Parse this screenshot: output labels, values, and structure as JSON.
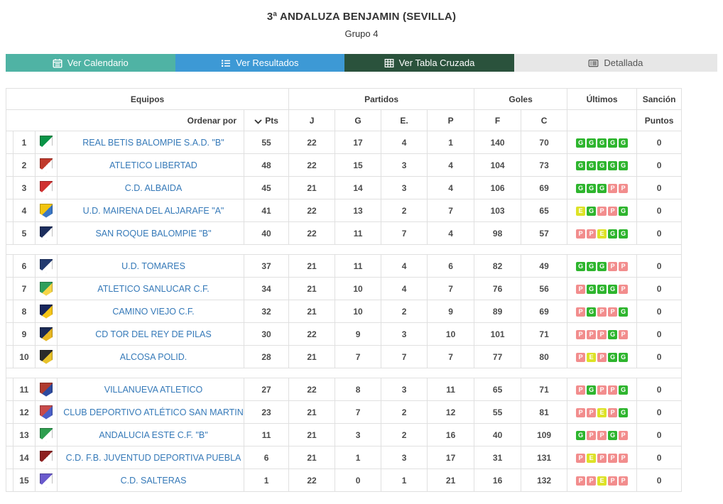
{
  "page": {
    "title": "3ª ANDALUZA BENJAMIN (SEVILLA)",
    "subtitle": "Grupo 4"
  },
  "tabs": [
    {
      "label": "Ver Calendario",
      "icon": "calendar-icon",
      "bg": "#4fb3a4",
      "fg": "#ffffff"
    },
    {
      "label": "Ver Resultados",
      "icon": "list-icon",
      "bg": "#3d99d5",
      "fg": "#ffffff"
    },
    {
      "label": "Ver Tabla Cruzada",
      "icon": "table-icon",
      "bg": "#2a523c",
      "fg": "#ffffff"
    },
    {
      "label": "Detallada",
      "icon": "list-alt-icon",
      "bg": "#e7e7e7",
      "fg": "#555555"
    }
  ],
  "table": {
    "group_headers": {
      "equipos": "Equipos",
      "partidos": "Partidos",
      "goles": "Goles",
      "ultimos": "Últimos",
      "sancion": "Sanción"
    },
    "sub_headers": {
      "ordenar": "Ordenar por",
      "pts": "Pts",
      "j": "J",
      "g": "G",
      "e": "E.",
      "p": "P",
      "f": "F",
      "c": "C",
      "puntos": "Puntos"
    },
    "legend_colors": {
      "G": "#2eb52e",
      "E": "#dde227",
      "P": "#f28d8d"
    },
    "rows": [
      {
        "pos": 1,
        "team": "REAL BETIS BALOMPIE S.A.D. \"B\"",
        "crest": [
          "#0a9447",
          "#ffffff"
        ],
        "pts": 55,
        "j": 22,
        "g": 17,
        "e": 4,
        "p": 1,
        "f": 140,
        "c": 70,
        "last5": [
          "G",
          "G",
          "G",
          "G",
          "G"
        ],
        "sancion": 0,
        "separator_after": false
      },
      {
        "pos": 2,
        "team": "ATLETICO LIBERTAD",
        "crest": [
          "#c0392b",
          "#ffffff"
        ],
        "pts": 48,
        "j": 22,
        "g": 15,
        "e": 3,
        "p": 4,
        "f": 104,
        "c": 73,
        "last5": [
          "G",
          "G",
          "G",
          "G",
          "G"
        ],
        "sancion": 0,
        "separator_after": false
      },
      {
        "pos": 3,
        "team": "C.D. ALBAIDA",
        "crest": [
          "#d03030",
          "#ffffff"
        ],
        "pts": 45,
        "j": 21,
        "g": 14,
        "e": 3,
        "p": 4,
        "f": 106,
        "c": 69,
        "last5": [
          "G",
          "G",
          "G",
          "P",
          "P"
        ],
        "sancion": 0,
        "separator_after": false
      },
      {
        "pos": 4,
        "team": "U.D. MAIRENA DEL ALJARAFE \"A\"",
        "crest": [
          "#f1c40f",
          "#3a76c4"
        ],
        "pts": 41,
        "j": 22,
        "g": 13,
        "e": 2,
        "p": 7,
        "f": 103,
        "c": 65,
        "last5": [
          "E",
          "G",
          "P",
          "P",
          "G"
        ],
        "sancion": 0,
        "separator_after": false
      },
      {
        "pos": 5,
        "team": "SAN ROQUE BALOMPIE \"B\"",
        "crest": [
          "#1c2e5e",
          "#ffffff"
        ],
        "pts": 40,
        "j": 22,
        "g": 11,
        "e": 7,
        "p": 4,
        "f": 98,
        "c": 57,
        "last5": [
          "P",
          "P",
          "E",
          "G",
          "G"
        ],
        "sancion": 0,
        "separator_after": true
      },
      {
        "pos": 6,
        "team": "U.D. TOMARES",
        "crest": [
          "#223a70",
          "#ffffff"
        ],
        "pts": 37,
        "j": 21,
        "g": 11,
        "e": 4,
        "p": 6,
        "f": 82,
        "c": 49,
        "last5": [
          "G",
          "G",
          "G",
          "P",
          "P"
        ],
        "sancion": 0,
        "separator_after": false
      },
      {
        "pos": 7,
        "team": "ATLETICO SANLUCAR C.F.",
        "crest": [
          "#2e9e5b",
          "#f5d547"
        ],
        "pts": 34,
        "j": 21,
        "g": 10,
        "e": 4,
        "p": 7,
        "f": 76,
        "c": 56,
        "last5": [
          "P",
          "G",
          "G",
          "G",
          "P"
        ],
        "sancion": 0,
        "separator_after": false
      },
      {
        "pos": 8,
        "team": "CAMINO VIEJO C.F.",
        "crest": [
          "#17265c",
          "#f5c518"
        ],
        "pts": 32,
        "j": 21,
        "g": 10,
        "e": 2,
        "p": 9,
        "f": 89,
        "c": 69,
        "last5": [
          "P",
          "G",
          "P",
          "P",
          "G"
        ],
        "sancion": 0,
        "separator_after": false
      },
      {
        "pos": 9,
        "team": "CD TOR DEL REY DE PILAS",
        "crest": [
          "#1b2a55",
          "#e8b722"
        ],
        "pts": 30,
        "j": 22,
        "g": 9,
        "e": 3,
        "p": 10,
        "f": 101,
        "c": 71,
        "last5": [
          "P",
          "P",
          "P",
          "G",
          "P"
        ],
        "sancion": 0,
        "separator_after": false
      },
      {
        "pos": 10,
        "team": "ALCOSA POLID.",
        "crest": [
          "#2b2b2b",
          "#e8c22a"
        ],
        "pts": 28,
        "j": 21,
        "g": 7,
        "e": 7,
        "p": 7,
        "f": 77,
        "c": 80,
        "last5": [
          "P",
          "E",
          "P",
          "G",
          "G"
        ],
        "sancion": 0,
        "separator_after": true
      },
      {
        "pos": 11,
        "team": "VILLANUEVA ATLETICO",
        "crest": [
          "#b03a2e",
          "#2e4a9e"
        ],
        "pts": 27,
        "j": 22,
        "g": 8,
        "e": 3,
        "p": 11,
        "f": 65,
        "c": 71,
        "last5": [
          "P",
          "G",
          "P",
          "P",
          "G"
        ],
        "sancion": 0,
        "separator_after": false
      },
      {
        "pos": 12,
        "team": "CLUB DEPORTIVO ATLÉTICO SAN MARTIN",
        "crest": [
          "#c74a4a",
          "#4a5fc7"
        ],
        "pts": 23,
        "j": 21,
        "g": 7,
        "e": 2,
        "p": 12,
        "f": 55,
        "c": 81,
        "last5": [
          "P",
          "P",
          "E",
          "P",
          "G"
        ],
        "sancion": 0,
        "separator_after": false
      },
      {
        "pos": 13,
        "team": "ANDALUCIA ESTE C.F. \"B\"",
        "crest": [
          "#2e9e4f",
          "#ffffff"
        ],
        "pts": 11,
        "j": 21,
        "g": 3,
        "e": 2,
        "p": 16,
        "f": 40,
        "c": 109,
        "last5": [
          "G",
          "P",
          "P",
          "G",
          "P"
        ],
        "sancion": 0,
        "separator_after": false
      },
      {
        "pos": 14,
        "team": "C.D. F.B. JUVENTUD DEPORTIVA PUEBLA",
        "crest": [
          "#8e2020",
          "#ffffff"
        ],
        "pts": 6,
        "j": 21,
        "g": 1,
        "e": 3,
        "p": 17,
        "f": 31,
        "c": 131,
        "last5": [
          "P",
          "E",
          "P",
          "P",
          "P"
        ],
        "sancion": 0,
        "separator_after": false
      },
      {
        "pos": 15,
        "team": "C.D. SALTERAS",
        "crest": [
          "#6a5acd",
          "#ffffff"
        ],
        "pts": 1,
        "j": 22,
        "g": 0,
        "e": 1,
        "p": 21,
        "f": 16,
        "c": 132,
        "last5": [
          "P",
          "P",
          "E",
          "P",
          "P"
        ],
        "sancion": 0,
        "separator_after": false
      }
    ]
  }
}
